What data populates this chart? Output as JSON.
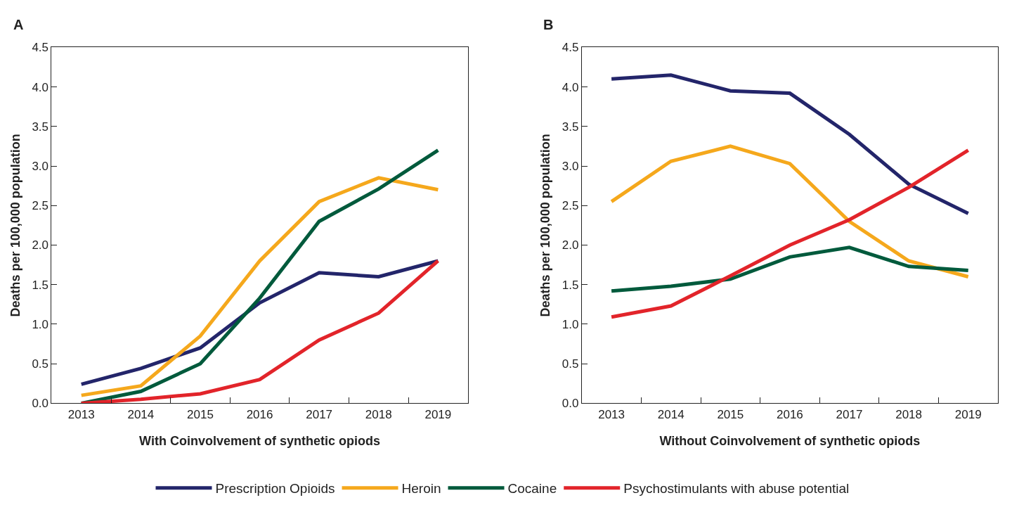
{
  "chart_data": [
    {
      "type": "line",
      "title": "A",
      "xlabel": "With Coinvolvement of synthetic opiods",
      "ylabel": "Deaths per 100,000 population",
      "categories": [
        "2013",
        "2014",
        "2015",
        "2016",
        "2017",
        "2018",
        "2019"
      ],
      "ylim": [
        0,
        4.5
      ],
      "yticks": [
        {
          "value": 0,
          "label": "0.0"
        },
        0.5,
        {
          "value": 1,
          "label": "1.0"
        },
        1.5,
        {
          "value": 2,
          "label": "2.0"
        },
        2.5,
        {
          "value": 3,
          "label": "3.0"
        },
        3.5,
        {
          "value": 4,
          "label": "4.0"
        },
        4.5
      ],
      "legend": "bottom",
      "line_style": "solid",
      "series": [
        {
          "name": "Prescription Opioids",
          "color": "#23256a",
          "values": [
            0.24,
            0.44,
            0.7,
            1.27,
            1.65,
            1.6,
            1.8
          ]
        },
        {
          "name": "Heroin",
          "color": "#f5a81c",
          "values": [
            0.1,
            0.22,
            0.85,
            1.8,
            2.55,
            2.85,
            2.7
          ]
        },
        {
          "name": "Cocaine",
          "color": "#005a3c",
          "values": [
            0,
            0.15,
            0.5,
            1.33,
            2.3,
            2.71,
            3.2
          ]
        },
        {
          "name": "Psychostimulants with abuse potential",
          "color": "#e2242a",
          "values": [
            0,
            0.05,
            0.12,
            0.3,
            0.8,
            1.14,
            1.8
          ]
        }
      ]
    },
    {
      "type": "line",
      "title": "B",
      "xlabel": "Without Coinvolvement of synthetic opiods",
      "ylabel": "Deaths per 100,000 population",
      "categories": [
        "2013",
        "2014",
        "2015",
        "2016",
        "2017",
        "2018",
        "2019"
      ],
      "ylim": [
        0,
        4.5
      ],
      "yticks": [
        {
          "value": 0,
          "label": "0.0"
        },
        0.5,
        {
          "value": 1,
          "label": "1.0"
        },
        1.5,
        {
          "value": 2,
          "label": "2.0"
        },
        2.5,
        {
          "value": 3,
          "label": "3.0"
        },
        3.5,
        {
          "value": 4,
          "label": "4.0"
        },
        4.5
      ],
      "legend": "bottom",
      "line_style": "solid",
      "series": [
        {
          "name": "Prescription Opioids",
          "color": "#23256a",
          "values": [
            4.1,
            4.15,
            3.95,
            3.92,
            3.4,
            2.77,
            2.4
          ]
        },
        {
          "name": "Heroin",
          "color": "#f5a81c",
          "values": [
            2.55,
            3.06,
            3.25,
            3.03,
            2.3,
            1.8,
            1.6
          ]
        },
        {
          "name": "Cocaine",
          "color": "#005a3c",
          "values": [
            1.42,
            1.48,
            1.57,
            1.85,
            1.97,
            1.73,
            1.68
          ]
        },
        {
          "name": "Psychostimulants with abuse potential",
          "color": "#e2242a",
          "values": [
            1.09,
            1.23,
            1.61,
            2.0,
            2.32,
            2.73,
            3.2
          ]
        }
      ]
    }
  ]
}
